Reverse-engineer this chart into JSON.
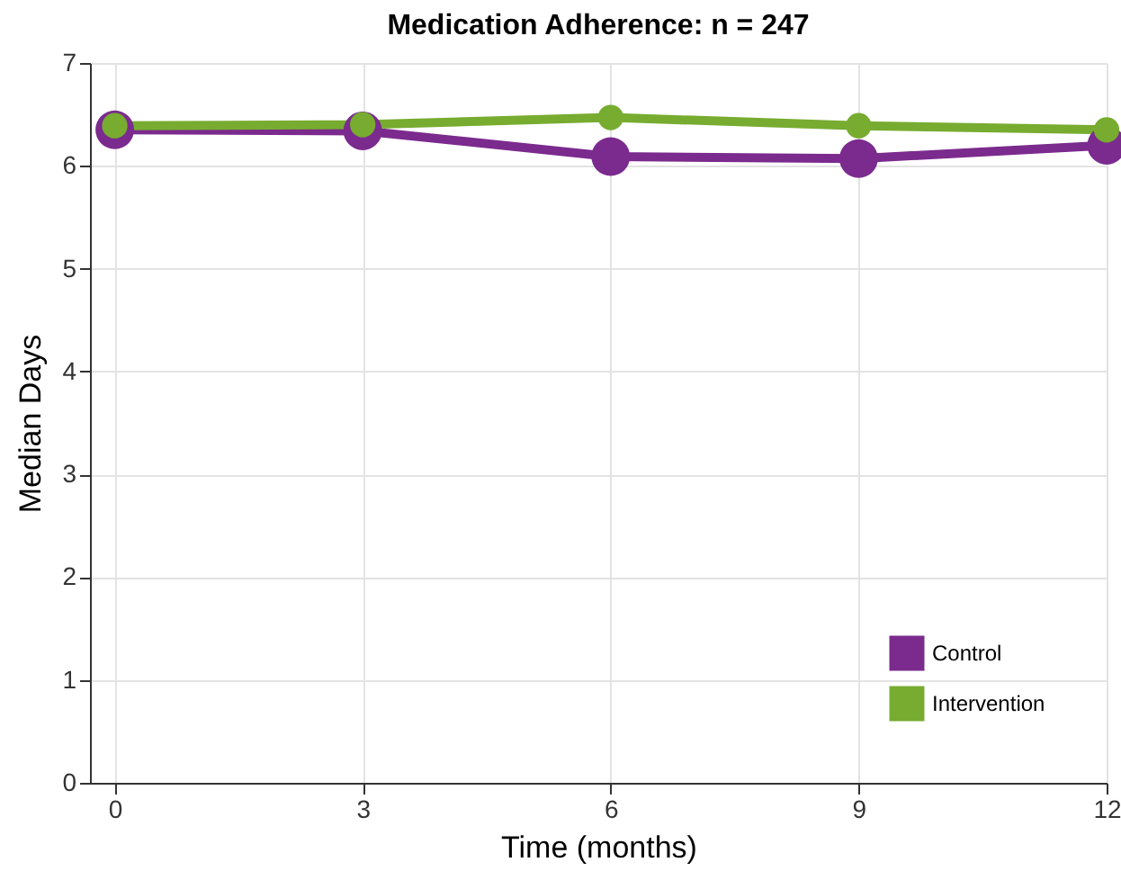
{
  "chart_data": {
    "type": "line",
    "title": "Medication Adherence: n = 247",
    "xlabel": "Time (months)",
    "ylabel": "Median Days",
    "x": [
      0,
      3,
      6,
      9,
      12
    ],
    "xlim": [
      -0.3,
      12
    ],
    "xticks": [
      0,
      3,
      6,
      9,
      12
    ],
    "ylim": [
      0,
      7
    ],
    "yticks": [
      0,
      1,
      2,
      3,
      4,
      5,
      6,
      7
    ],
    "grid": true,
    "legend": "bottom right",
    "marker": "circle",
    "line_style": "solid",
    "series": [
      {
        "name": "Control",
        "color": "#7b2a8e",
        "values": [
          6.35,
          6.34,
          6.09,
          6.07,
          6.2
        ]
      },
      {
        "name": "Intervention",
        "color": "#77ac30",
        "values": [
          6.39,
          6.4,
          6.47,
          6.39,
          6.35
        ]
      }
    ]
  }
}
